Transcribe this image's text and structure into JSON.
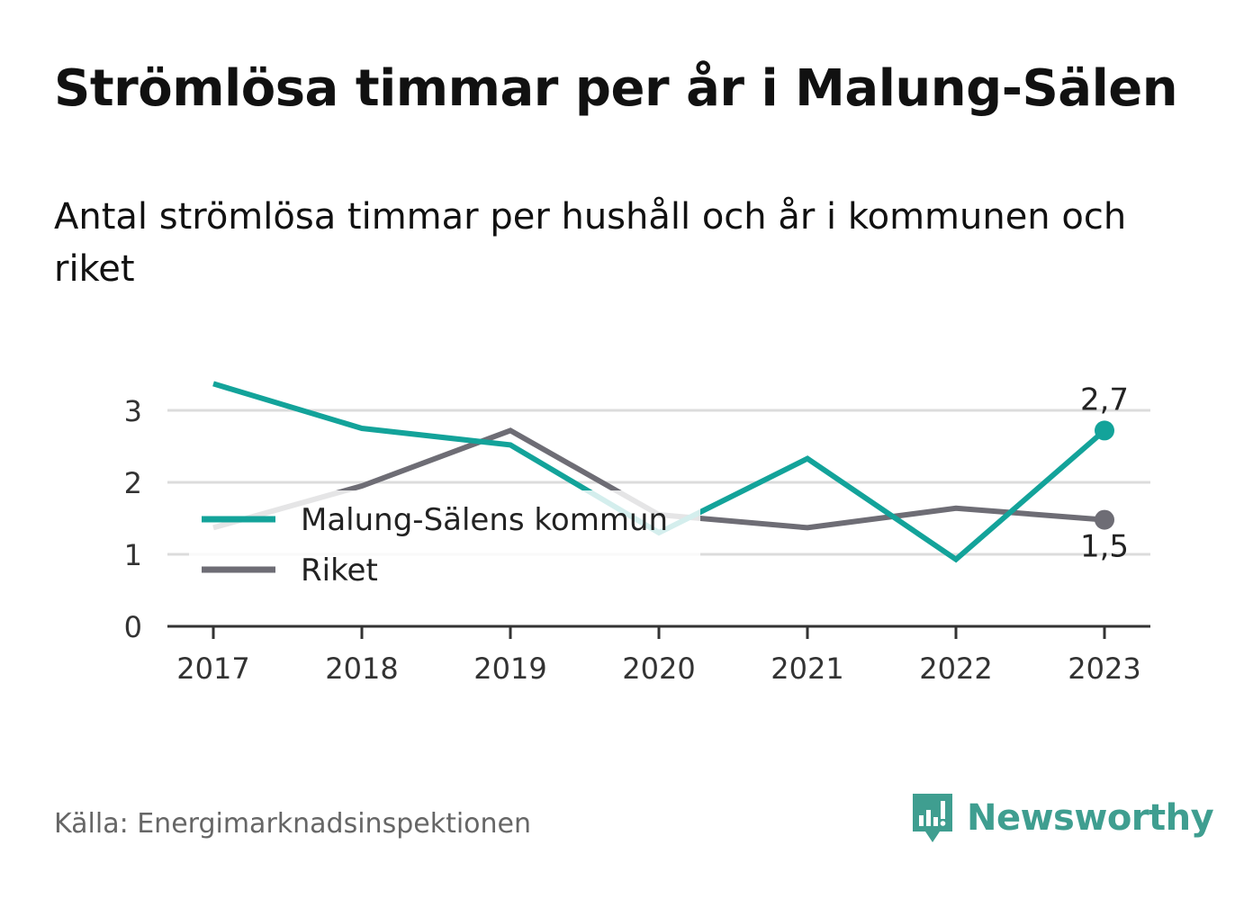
{
  "title": "Strömlösa timmar per år i Malung-Sälen",
  "subtitle": "Antal strömlösa timmar per hushåll och år i kommunen och riket",
  "source": "Källa: Energimarknadsinspektionen",
  "brand": {
    "name": "Newsworthy",
    "color": "#3f9e90"
  },
  "chart_data": {
    "type": "line",
    "title": "Strömlösa timmar per år i Malung-Sälen",
    "subtitle": "Antal strömlösa timmar per hushåll och år i kommunen och riket",
    "x": [
      "2017",
      "2018",
      "2019",
      "2020",
      "2021",
      "2022",
      "2023"
    ],
    "ylim": [
      0,
      3.4
    ],
    "yticks": [
      "0",
      "1",
      "2",
      "3"
    ],
    "grid": true,
    "legend_position": "center-left",
    "series": [
      {
        "name": "Malung-Sälens kommun",
        "color": "#13a39a",
        "values": [
          3.37,
          2.75,
          2.52,
          1.3,
          2.33,
          0.93,
          2.72
        ],
        "end_label": "2,7"
      },
      {
        "name": "Riket",
        "color": "#6e6d75",
        "values": [
          1.37,
          1.95,
          2.72,
          1.55,
          1.37,
          1.64,
          1.48
        ],
        "end_label": "1,5"
      }
    ]
  }
}
